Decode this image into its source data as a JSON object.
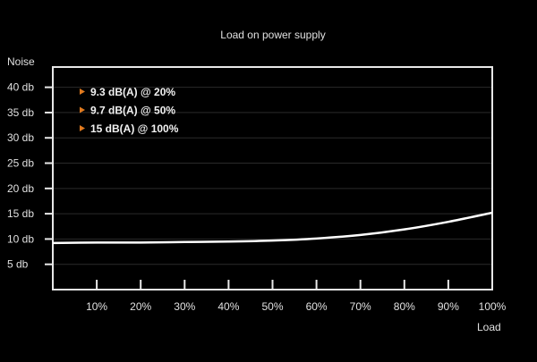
{
  "chart_data": {
    "type": "line",
    "title": "Load on power supply",
    "xlabel": "Load",
    "ylabel": "Noise",
    "x": [
      0,
      10,
      20,
      30,
      40,
      50,
      60,
      70,
      80,
      90,
      100
    ],
    "series": [
      {
        "values": [
          9.2,
          9.3,
          9.3,
          9.4,
          9.5,
          9.7,
          10.1,
          10.8,
          11.9,
          13.4,
          15.2
        ]
      }
    ],
    "xlim": [
      0,
      100
    ],
    "ylim": [
      0,
      44
    ],
    "xticks": [
      10,
      20,
      30,
      40,
      50,
      60,
      70,
      80,
      90,
      100
    ],
    "xtick_labels": [
      "10%",
      "20%",
      "30%",
      "40%",
      "50%",
      "60%",
      "70%",
      "80%",
      "90%",
      "100%"
    ],
    "yticks": [
      5,
      10,
      15,
      20,
      25,
      30,
      35,
      40
    ],
    "ytick_labels": [
      "5 db",
      "10 db",
      "15 db",
      "20 db",
      "25 db",
      "30 db",
      "35 db",
      "40 db"
    ],
    "grid": true,
    "annotations": [
      "9.3 dB(A) @ 20%",
      "9.7 dB(A) @ 50%",
      "15  dB(A) @ 100%"
    ],
    "colors": {
      "background": "#000000",
      "line": "#ffffff",
      "grid": "#2a2a2a",
      "bullet": "#e07a1f"
    }
  }
}
